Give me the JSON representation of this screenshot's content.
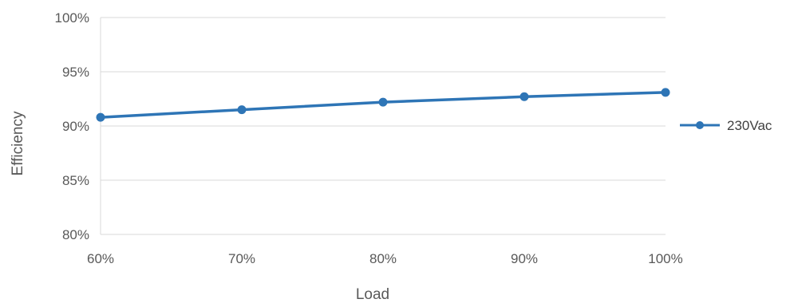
{
  "chart_data": {
    "type": "line",
    "xlabel": "Load",
    "ylabel": "Efficiency",
    "x": [
      "60%",
      "70%",
      "80%",
      "90%",
      "100%"
    ],
    "y_ticks": [
      "80%",
      "85%",
      "90%",
      "95%",
      "100%"
    ],
    "ylim": [
      80,
      100
    ],
    "grid": true,
    "legend_position": "right",
    "series": [
      {
        "name": "230Vac",
        "color": "#2e75b6",
        "values": [
          90.8,
          91.5,
          92.2,
          92.7,
          93.1
        ]
      }
    ]
  }
}
